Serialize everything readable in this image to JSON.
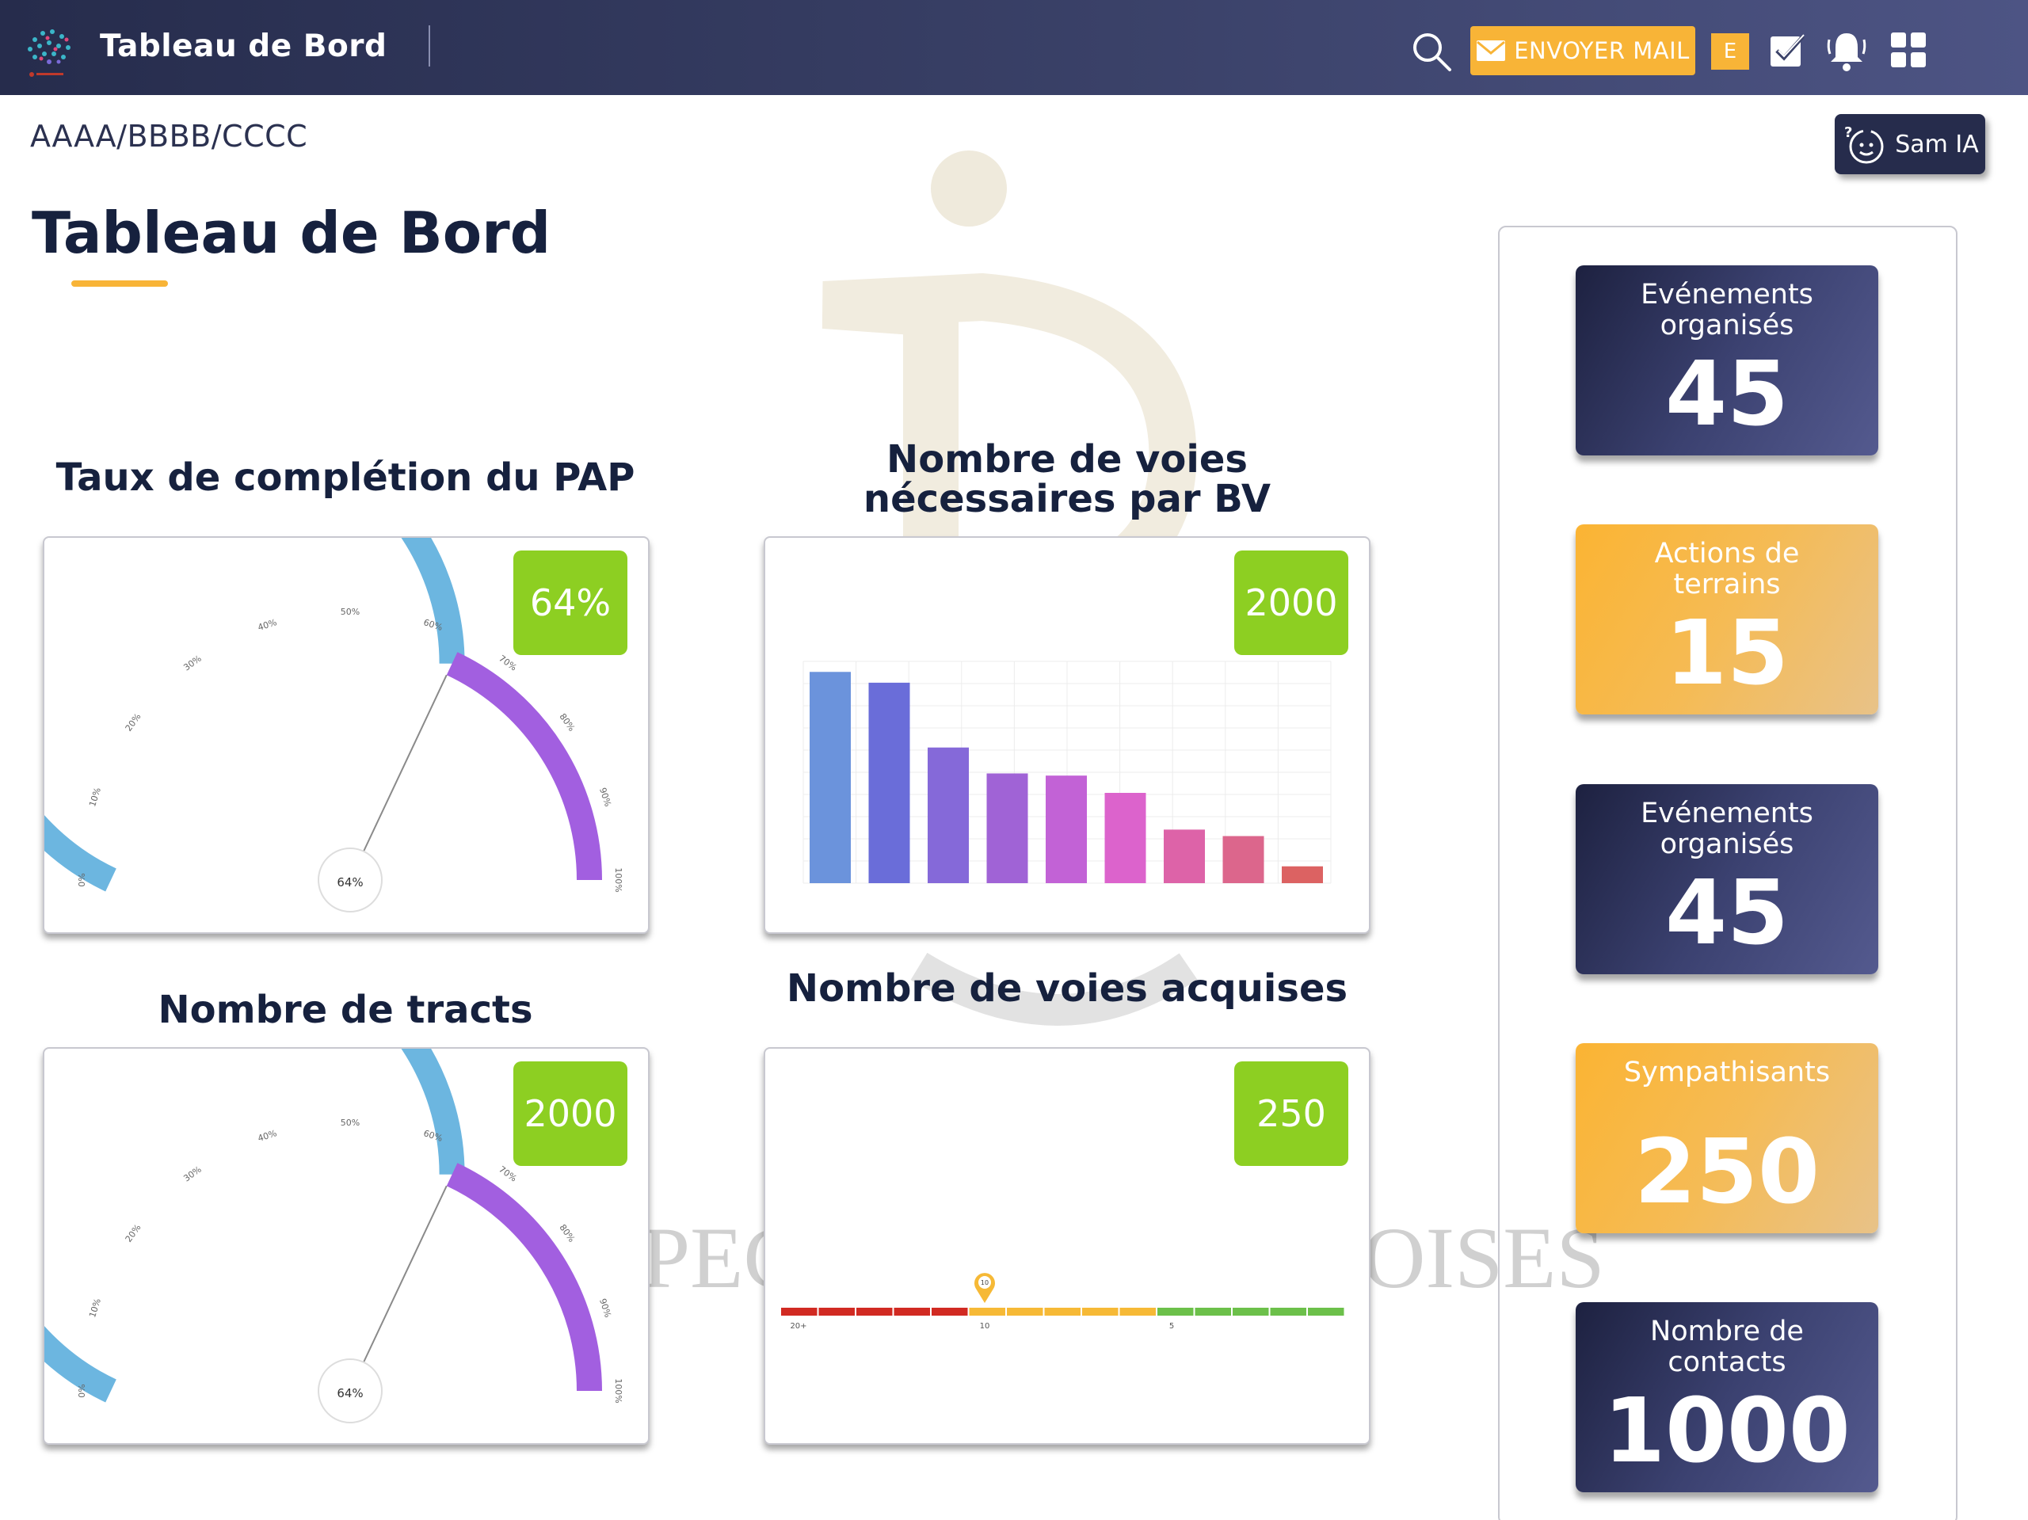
{
  "header": {
    "app_title": "Tableau de Bord",
    "mail_button": "ENVOYER MAIL",
    "user_initial": "E"
  },
  "breadcrumb": "AAAA/BBBB/CCCC",
  "sam_button": "Sam IA",
  "page_title": "Tableau de Bord",
  "watermark_text": "PEC OISES",
  "widgets": {
    "pap": {
      "title": "Taux de complétion du PAP",
      "badge": "64%",
      "needle_label": "64%",
      "ticks": [
        "0%",
        "10%",
        "20%",
        "30%",
        "40%",
        "50%",
        "60%",
        "70%",
        "80%",
        "90%",
        "100%"
      ]
    },
    "voies_bv": {
      "title_line1": "Nombre de voies",
      "title_line2": "nécessaires par BV",
      "badge": "2000"
    },
    "tracts": {
      "title": "Nombre de tracts",
      "badge": "2000",
      "needle_label": "64%",
      "ticks": [
        "0%",
        "10%",
        "20%",
        "30%",
        "40%",
        "50%",
        "60%",
        "70%",
        "80%",
        "90%",
        "100%"
      ]
    },
    "voies_acquises": {
      "title": "Nombre de voies acquises",
      "badge": "250",
      "scale_labels": [
        "20+",
        "10",
        "5"
      ],
      "marker_label": "10"
    }
  },
  "kpis": [
    {
      "label": "Evénements organisés",
      "value": "45",
      "style": "dark"
    },
    {
      "label": "Actions de terrains",
      "value": "15",
      "style": "gold"
    },
    {
      "label": "Evénements organisés",
      "value": "45",
      "style": "dark"
    },
    {
      "label": "Sympathisants",
      "value": "250",
      "style": "gold"
    },
    {
      "label": "Nombre de contacts",
      "value": "1000",
      "style": "dark"
    }
  ],
  "chart_data": [
    {
      "type": "gauge",
      "title": "Taux de complétion du PAP",
      "value": 64,
      "range": [
        0,
        100
      ],
      "colors": {
        "filled": "#6cb6e0",
        "remaining": "#a25fe0"
      }
    },
    {
      "type": "bar",
      "title": "Nombre de voies nécessaires par BV",
      "values": [
        100,
        95,
        65,
        53,
        52,
        44,
        27,
        24,
        10
      ],
      "ylim": [
        0,
        110
      ],
      "colors": [
        "#6b93dc",
        "#6a6dd9",
        "#8569d9",
        "#a063d6",
        "#c262d6",
        "#dc63cc",
        "#dd63a8",
        "#dc668c",
        "#dc6262"
      ]
    },
    {
      "type": "gauge",
      "title": "Nombre de tracts",
      "value": 64,
      "range": [
        0,
        100
      ],
      "colors": {
        "filled": "#6cb6e0",
        "remaining": "#a25fe0"
      }
    },
    {
      "type": "linear-gauge",
      "title": "Nombre de voies acquises",
      "segments": [
        {
          "color": "#d12a22",
          "count": 5
        },
        {
          "color": "#f6b936",
          "count": 5
        },
        {
          "color": "#6cc04a",
          "count": 5
        }
      ],
      "marker": 10
    }
  ]
}
